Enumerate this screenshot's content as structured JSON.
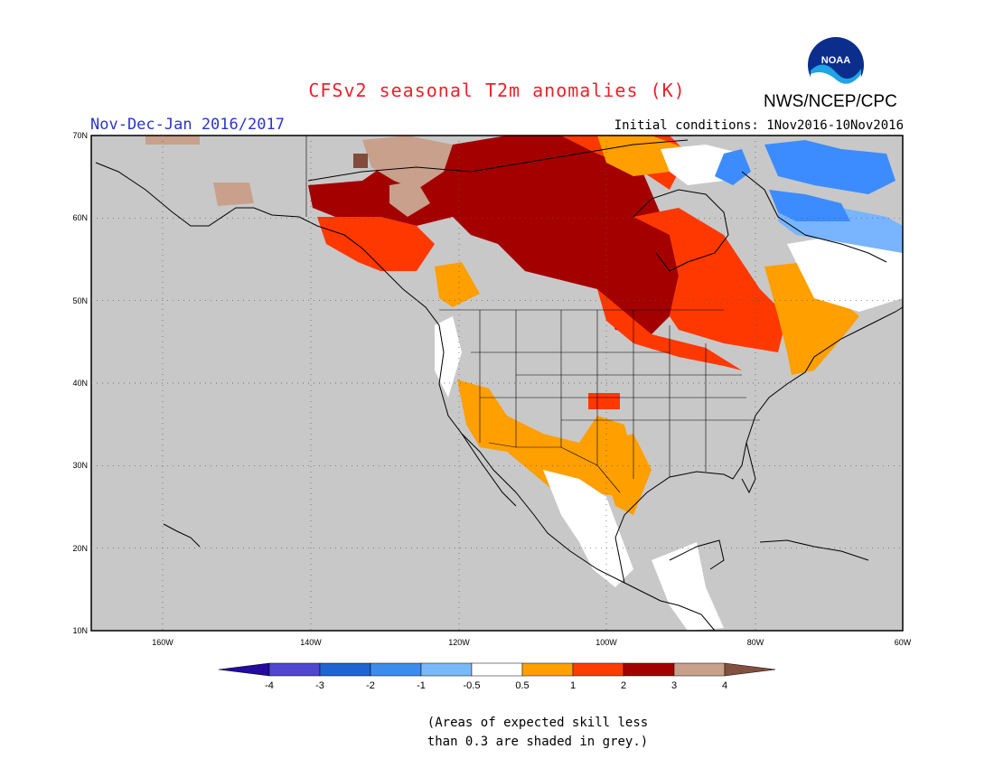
{
  "header": {
    "title": "CFSv2 seasonal T2m anomalies (K)",
    "agency": "NWS/NCEP/CPC",
    "logo_text": "NOAA",
    "period": "Nov-Dec-Jan 2016/2017",
    "initial_conditions": "Initial conditions: 1Nov2016-10Nov2016"
  },
  "map": {
    "region": "North America",
    "lat_labels": [
      "70N",
      "60N",
      "50N",
      "40N",
      "30N",
      "20N",
      "10N"
    ],
    "lon_labels": [
      "160W",
      "140W",
      "120W",
      "100W",
      "80W",
      "60W"
    ],
    "colors": {
      "grey": "#c8c8c8",
      "white": "#ffffff",
      "orange": "#ff9f00",
      "red_orange": "#ff3800",
      "dark_red": "#a50000",
      "tan": "#c8a08c",
      "brown": "#824b3b",
      "light_blue": "#78b4ff",
      "blue": "#3c8cff",
      "dark_blue": "#1e5ac8"
    }
  },
  "colorbar": {
    "tick_labels": [
      "-4",
      "-3",
      "-2",
      "-1",
      "-0.5",
      "0.5",
      "1",
      "2",
      "3",
      "4"
    ],
    "colors": [
      "#230aa0",
      "#5046d2",
      "#1e64d2",
      "#3c8cf0",
      "#78b9fa",
      "#ffffff",
      "#ffa000",
      "#ff3c00",
      "#a50000",
      "#c8a08c",
      "#825040"
    ]
  },
  "footnote": {
    "line1": "(Areas of expected skill less",
    "line2": "than 0.3 are shaded in grey.)"
  }
}
